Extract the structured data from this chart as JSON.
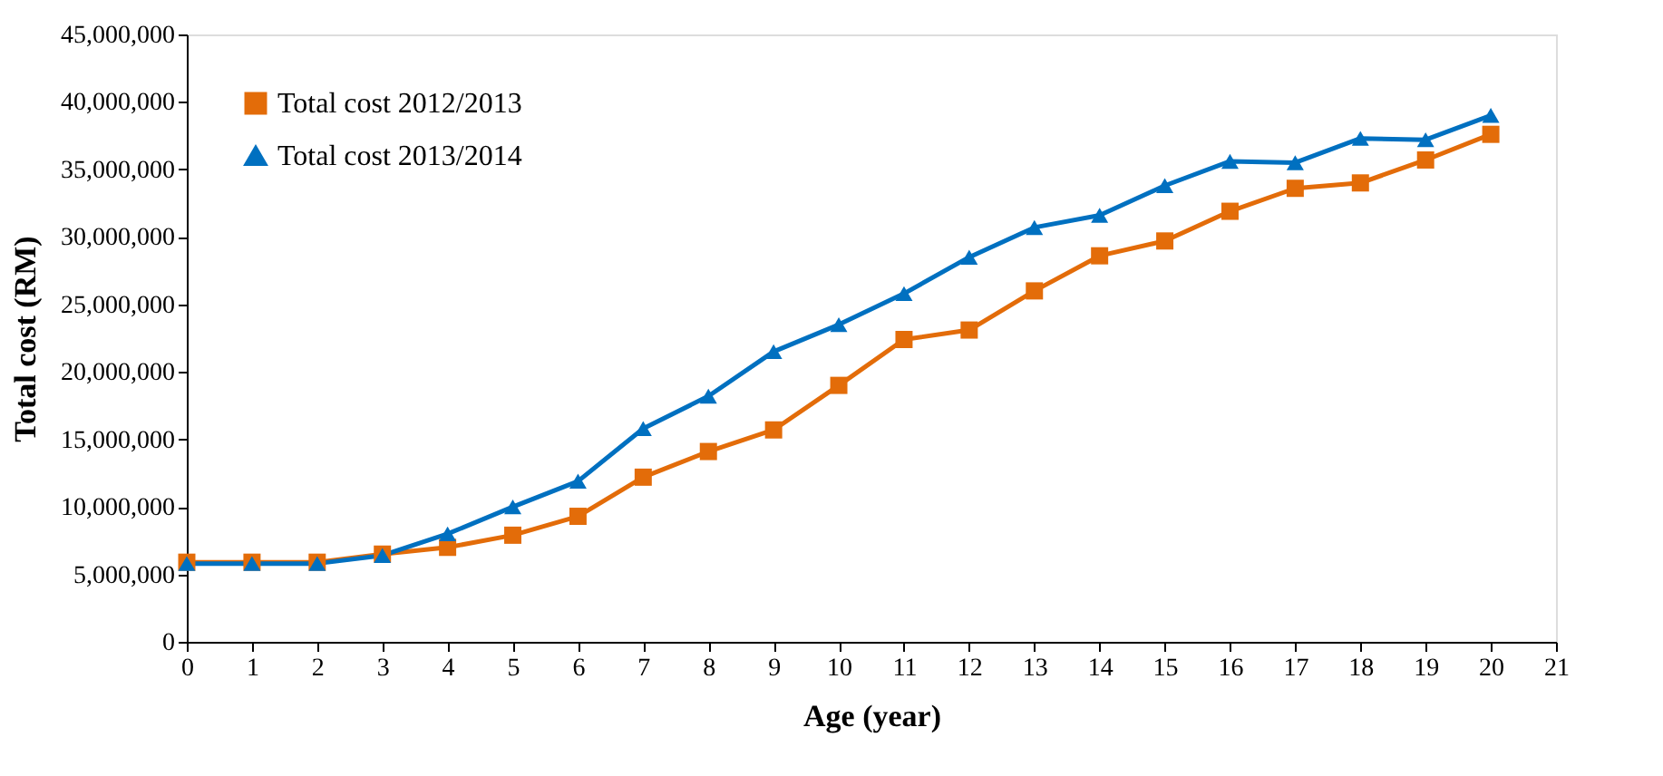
{
  "chart_data": {
    "type": "line",
    "xlabel": "Age (year)",
    "ylabel": "Total cost (RM)",
    "x": [
      0,
      1,
      2,
      3,
      4,
      5,
      6,
      7,
      8,
      9,
      10,
      11,
      12,
      13,
      14,
      15,
      16,
      17,
      18,
      19,
      20
    ],
    "series": [
      {
        "name": "Total cost 2012/2013",
        "color": "#e36c09",
        "marker": "square",
        "values": [
          5900000,
          5900000,
          5900000,
          6500000,
          7000000,
          7900000,
          9300000,
          12200000,
          14100000,
          15700000,
          19000000,
          22400000,
          23100000,
          26000000,
          28600000,
          29700000,
          31900000,
          33600000,
          34000000,
          35700000,
          37600000
        ]
      },
      {
        "name": "Total cost 2013/2014",
        "color": "#0070c0",
        "marker": "triangle",
        "values": [
          5800000,
          5800000,
          5800000,
          6400000,
          8000000,
          10000000,
          11900000,
          15800000,
          18200000,
          21500000,
          23500000,
          25800000,
          28500000,
          30700000,
          31600000,
          33800000,
          35600000,
          35500000,
          37300000,
          37200000,
          39000000
        ]
      }
    ],
    "xlim": [
      0,
      21
    ],
    "xticks": [
      0,
      1,
      2,
      3,
      4,
      5,
      6,
      7,
      8,
      9,
      10,
      11,
      12,
      13,
      14,
      15,
      16,
      17,
      18,
      19,
      20,
      21
    ],
    "ylim": [
      0,
      45000000
    ],
    "yticks": [
      0,
      {
        "value": 5000000,
        "label": "5,000,000"
      },
      {
        "value": 10000000,
        "label": "10,000,000"
      },
      {
        "value": 15000000,
        "label": "15,000,000"
      },
      {
        "value": 20000000,
        "label": "20,000,000"
      },
      {
        "value": 25000000,
        "label": "25,000,000"
      },
      {
        "value": 30000000,
        "label": "30,000,000"
      },
      {
        "value": 35000000,
        "label": "35,000,000"
      },
      {
        "value": 40000000,
        "label": "40,000,000"
      },
      {
        "value": 45000000,
        "label": "45,000,000"
      }
    ],
    "grid": false,
    "legend": "top left",
    "line_style": "solid"
  }
}
